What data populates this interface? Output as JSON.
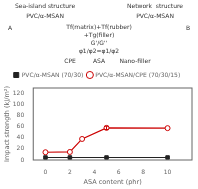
{
  "chart_data": {
    "type": "line",
    "annotations": [
      "Sea-island structure",
      "Network  structure",
      "PVC/α-MSAN",
      "PVC/α-MSAN",
      "A",
      "B",
      "Tf(matrix)+Tf(rubber)",
      "+Tg(filler)",
      "G'/G''",
      "φ1/φ2=φ1/φ2",
      "CPE",
      "ASA",
      "Nano-filler"
    ],
    "x_label": "ASA content (phr)",
    "y_label": "Impact strength (kJ/m²)",
    "xlim": [
      -1,
      12
    ],
    "xticks": [
      0,
      2,
      4,
      6,
      8,
      10
    ],
    "ylim": [
      0,
      130
    ],
    "yticks": [
      0,
      20,
      40,
      60,
      80,
      100,
      120
    ],
    "grid": false,
    "legend": "top",
    "series": [
      {
        "name": "PVC/α-MSAN (70/30)",
        "color": "#222222",
        "marker": "square",
        "x": [
          0,
          2,
          5,
          10
        ],
        "values": [
          4.5,
          4.5,
          4.5,
          4.5
        ]
      },
      {
        "name": "PVC/α-MSAN/CPE (70/30/15)",
        "color": "#cc0000",
        "marker": "circle",
        "x": [
          0,
          2,
          3,
          5,
          10
        ],
        "values": [
          14.0,
          14.5,
          38.0,
          58.0,
          57.5
        ],
        "errors": [
          0,
          0,
          0,
          3.0,
          0
        ]
      }
    ]
  }
}
